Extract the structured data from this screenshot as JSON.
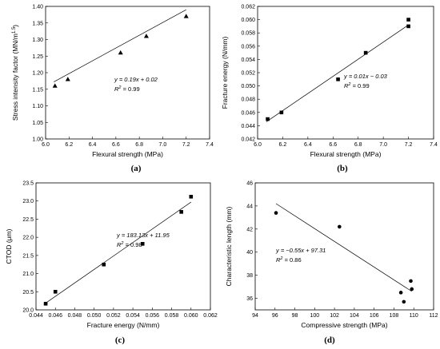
{
  "chart_data": [
    {
      "type": "scatter",
      "panel_label": "(a)",
      "xlabel": "Flexural strength (MPa)",
      "ylabel": "Stress intensity factor (MN/m",
      "ylabel_exp": "1.5",
      "ylabel_close": ")",
      "xlim": [
        6.0,
        7.4
      ],
      "ylim": [
        1.0,
        1.4
      ],
      "xticks": [
        "6.0",
        "6.2",
        "6.4",
        "6.6",
        "6.8",
        "7.0",
        "7.2",
        "7.4"
      ],
      "yticks": [
        "1.00",
        "1.05",
        "1.10",
        "1.15",
        "1.20",
        "1.25",
        "1.30",
        "1.35",
        "1.40"
      ],
      "marker": "triangle",
      "series": [
        {
          "x": [
            6.08,
            6.19,
            6.64,
            6.86,
            7.2
          ],
          "y": [
            1.16,
            1.18,
            1.26,
            1.31,
            1.37
          ]
        }
      ],
      "fit": {
        "x": [
          6.07,
          7.2
        ],
        "y": [
          1.1722,
          1.39
        ]
      },
      "equation": "y = 0.19x + 0.02",
      "r2_label": "R",
      "r2_exp": "2",
      "r2_value": " = 0.99"
    },
    {
      "type": "scatter",
      "panel_label": "(b)",
      "xlabel": "Flexural strength (MPa)",
      "ylabel": "Fracture energy (N/mm)",
      "xlim": [
        6.0,
        7.4
      ],
      "ylim": [
        0.042,
        0.062
      ],
      "xticks": [
        "6.0",
        "6.2",
        "6.4",
        "6.6",
        "6.8",
        "7.0",
        "7.2",
        "7.4"
      ],
      "yticks": [
        "0.042",
        "0.044",
        "0.046",
        "0.048",
        "0.050",
        "0.052",
        "0.054",
        "0.056",
        "0.058",
        "0.060",
        "0.062"
      ],
      "marker": "square",
      "series": [
        {
          "x": [
            6.08,
            6.19,
            6.64,
            6.86,
            7.2,
            7.2
          ],
          "y": [
            0.045,
            0.046,
            0.051,
            0.055,
            0.059,
            0.06
          ]
        }
      ],
      "fit": {
        "x": [
          6.07,
          7.2
        ],
        "y": [
          0.0446,
          0.0592
        ]
      },
      "equation": "y = 0.01x − 0.03",
      "r2_label": "R",
      "r2_exp": "2",
      "r2_value": " = 0.99"
    },
    {
      "type": "scatter",
      "panel_label": "(c)",
      "xlabel": "Fracture energy (N/mm)",
      "ylabel": "CTOD (μm)",
      "xlim": [
        0.044,
        0.062
      ],
      "ylim": [
        20.0,
        23.5
      ],
      "xticks": [
        "0.044",
        "0.046",
        "0.048",
        "0.050",
        "0.052",
        "0.054",
        "0.056",
        "0.058",
        "0.060",
        "0.062"
      ],
      "yticks": [
        "20.0",
        "20.5",
        "21.0",
        "21.5",
        "22.0",
        "22.5",
        "23.0",
        "23.5"
      ],
      "marker": "square",
      "series": [
        {
          "x": [
            0.045,
            0.046,
            0.051,
            0.055,
            0.059,
            0.06
          ],
          "y": [
            20.17,
            20.5,
            21.25,
            21.82,
            22.7,
            23.12
          ]
        }
      ],
      "fit": {
        "x": [
          0.0448,
          0.06
        ],
        "y": [
          20.15,
          22.97
        ]
      },
      "equation": "y = 183.13x + 11.95",
      "r2_label": "R",
      "r2_exp": "2",
      "r2_value": " = 0.98"
    },
    {
      "type": "scatter",
      "panel_label": "(d)",
      "xlabel": "Compressive strength (MPa)",
      "ylabel": "Characteristic length (mm)",
      "xlim": [
        94,
        112
      ],
      "ylim": [
        35,
        46
      ],
      "xticks": [
        "94",
        "96",
        "98",
        "100",
        "102",
        "104",
        "106",
        "108",
        "110",
        "112"
      ],
      "yticks": [
        "36",
        "38",
        "40",
        "42",
        "44",
        "46"
      ],
      "marker": "circle",
      "series": [
        {
          "x": [
            96.1,
            102.5,
            108.7,
            109.0,
            109.7,
            109.8
          ],
          "y": [
            43.4,
            42.2,
            36.5,
            35.7,
            37.5,
            36.8
          ]
        }
      ],
      "fit": {
        "x": [
          96.1,
          109.8
        ],
        "y": [
          44.2,
          36.6
        ]
      },
      "equation": "y = −0.55x + 97.31",
      "r2_label": "R",
      "r2_exp": "2",
      "r2_value": " = 0.86"
    }
  ]
}
